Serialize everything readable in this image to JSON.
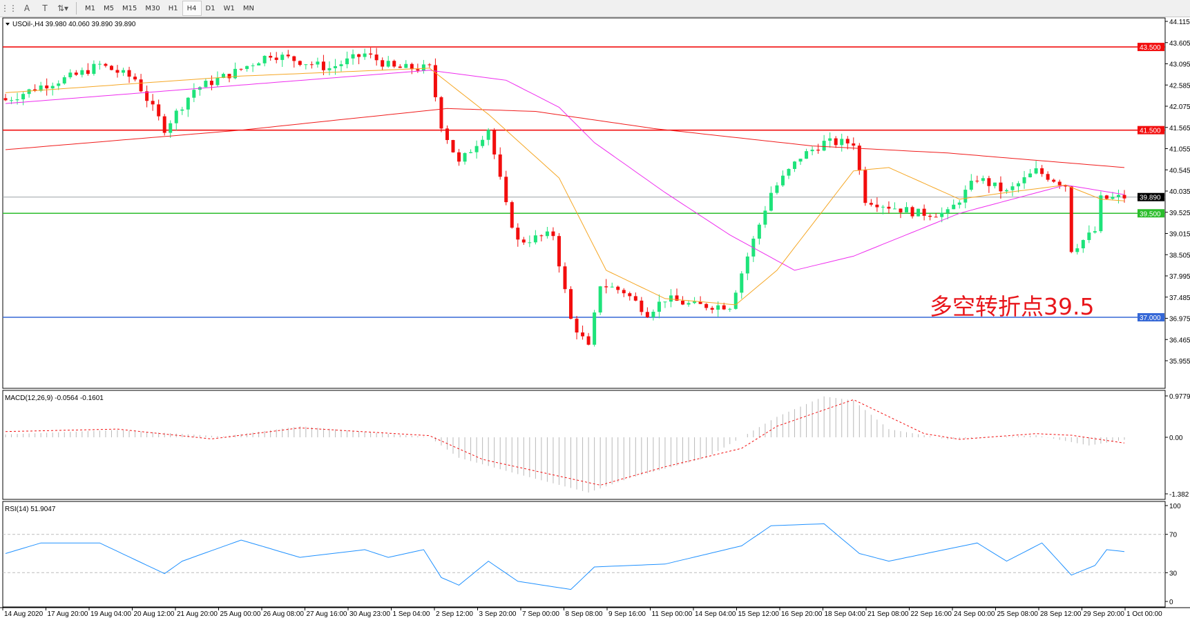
{
  "toolbar": {
    "tools": [
      {
        "name": "grid-options-icon",
        "glyph": "⋮⋮"
      },
      {
        "name": "text-tool-icon",
        "glyph": "A"
      },
      {
        "name": "text-label-tool-icon",
        "glyph": "T"
      },
      {
        "name": "arrows-tool-icon",
        "glyph": "⇅▾"
      }
    ],
    "timeframes": [
      "M1",
      "M5",
      "M15",
      "M30",
      "H1",
      "H4",
      "D1",
      "W1",
      "MN"
    ],
    "active_timeframe": "H4"
  },
  "chart_data": {
    "type": "candlestick",
    "symbol_header": "USOil-,H4  39.980 40.060 39.890 39.890",
    "annotation": "多空转折点39.5",
    "colors": {
      "bull": "#1ee37a",
      "bear": "#f20d0d",
      "ma_fast": "#f5a623",
      "ma_mid": "#ee2bee",
      "ma_slow": "#f01a1a",
      "rsi": "#1e90ff",
      "macd_signal": "#f20d0d",
      "macd_hist": "#b8b8b8"
    },
    "price_axis": {
      "min": 35.955,
      "max": 44.115,
      "ticks": [
        "44.115",
        "43.605",
        "43.095",
        "42.585",
        "42.075",
        "41.565",
        "41.055",
        "40.545",
        "40.035",
        "39.525",
        "39.015",
        "38.505",
        "37.995",
        "37.485",
        "36.975",
        "36.465",
        "35.955"
      ]
    },
    "horizontal_lines": [
      {
        "price": 43.5,
        "label": "43.500",
        "color": "#f20d0d"
      },
      {
        "price": 41.5,
        "label": "41.500",
        "color": "#f20d0d"
      },
      {
        "price": 39.5,
        "label": "39.500",
        "color": "#2bbd2b"
      },
      {
        "price": 37.0,
        "label": "37.000",
        "color": "#3567d6"
      },
      {
        "price": 39.89,
        "label": "39.890",
        "color": "#9aa0a6",
        "current": true
      }
    ],
    "time_labels": [
      "14 Aug 2020",
      "17 Aug 20:00",
      "19 Aug 04:00",
      "20 Aug 12:00",
      "21 Aug 20:00",
      "25 Aug 00:00",
      "26 Aug 08:00",
      "27 Aug 16:00",
      "30 Aug 23:00",
      "1 Sep 04:00",
      "2 Sep 12:00",
      "3 Sep 20:00",
      "7 Sep 00:00",
      "8 Sep 08:00",
      "9 Sep 16:00",
      "11 Sep 00:00",
      "14 Sep 04:00",
      "15 Sep 12:00",
      "16 Sep 20:00",
      "18 Sep 04:00",
      "21 Sep 08:00",
      "22 Sep 16:00",
      "24 Sep 00:00",
      "25 Sep 08:00",
      "28 Sep 12:00",
      "29 Sep 20:00",
      "1 Oct 00:00"
    ],
    "bars_total": 190,
    "close_path": [
      [
        0,
        42.22
      ],
      [
        6,
        42.56
      ],
      [
        12,
        42.82
      ],
      [
        16,
        43.07
      ],
      [
        22,
        42.73
      ],
      [
        27,
        41.54
      ],
      [
        32,
        42.48
      ],
      [
        39,
        42.9
      ],
      [
        45,
        43.33
      ],
      [
        50,
        43.16
      ],
      [
        55,
        42.99
      ],
      [
        61,
        43.33
      ],
      [
        66,
        42.99
      ],
      [
        72,
        42.99
      ],
      [
        74,
        41.63
      ],
      [
        77,
        40.69
      ],
      [
        82,
        41.54
      ],
      [
        85,
        39.67
      ],
      [
        87,
        38.82
      ],
      [
        93,
        38.99
      ],
      [
        96,
        36.94
      ],
      [
        99,
        36.26
      ],
      [
        101,
        37.8
      ],
      [
        105,
        37.62
      ],
      [
        109,
        37.11
      ],
      [
        112,
        37.45
      ],
      [
        117,
        37.28
      ],
      [
        123,
        37.28
      ],
      [
        126,
        38.47
      ],
      [
        130,
        40.0
      ],
      [
        135,
        40.86
      ],
      [
        139,
        41.2
      ],
      [
        144,
        41.2
      ],
      [
        146,
        39.84
      ],
      [
        150,
        39.67
      ],
      [
        155,
        39.5
      ],
      [
        160,
        39.5
      ],
      [
        165,
        40.35
      ],
      [
        170,
        40.0
      ],
      [
        175,
        40.52
      ],
      [
        180,
        40.18
      ],
      [
        181,
        38.64
      ],
      [
        185,
        39.07
      ],
      [
        186,
        39.84
      ],
      [
        190,
        39.89
      ]
    ],
    "ma_slow_path": [
      [
        0,
        41.03
      ],
      [
        40,
        41.5
      ],
      [
        75,
        42.02
      ],
      [
        90,
        41.95
      ],
      [
        110,
        41.54
      ],
      [
        137,
        41.12
      ],
      [
        160,
        40.95
      ],
      [
        190,
        40.6
      ]
    ],
    "ma_mid_path": [
      [
        0,
        42.14
      ],
      [
        37,
        42.55
      ],
      [
        72,
        42.94
      ],
      [
        85,
        42.7
      ],
      [
        94,
        42.05
      ],
      [
        100,
        41.2
      ],
      [
        112,
        40.0
      ],
      [
        123,
        38.98
      ],
      [
        134,
        38.13
      ],
      [
        144,
        38.47
      ],
      [
        162,
        39.5
      ],
      [
        180,
        40.18
      ],
      [
        190,
        39.95
      ]
    ],
    "ma_fast_path": [
      [
        0,
        42.4
      ],
      [
        40,
        42.8
      ],
      [
        72,
        42.99
      ],
      [
        82,
        41.88
      ],
      [
        94,
        40.35
      ],
      [
        102,
        38.13
      ],
      [
        112,
        37.45
      ],
      [
        124,
        37.3
      ],
      [
        131,
        38.13
      ],
      [
        144,
        40.52
      ],
      [
        150,
        40.6
      ],
      [
        162,
        39.84
      ],
      [
        170,
        40.0
      ],
      [
        180,
        40.18
      ],
      [
        186,
        39.84
      ],
      [
        190,
        39.8
      ]
    ],
    "macd": {
      "header": "MACD(12,26,9) -0.0564 -0.1601",
      "range": [
        -1.382,
        0.9779
      ],
      "ticks": [
        "0.9779",
        "0.00",
        "-1.382"
      ],
      "signal_path": [
        [
          0,
          0.14
        ],
        [
          19,
          0.2
        ],
        [
          35,
          -0.04
        ],
        [
          50,
          0.23
        ],
        [
          72,
          0.04
        ],
        [
          81,
          -0.54
        ],
        [
          94,
          -0.95
        ],
        [
          101,
          -1.17
        ],
        [
          112,
          -0.72
        ],
        [
          125,
          -0.27
        ],
        [
          131,
          0.27
        ],
        [
          144,
          0.92
        ],
        [
          156,
          0.09
        ],
        [
          162,
          -0.05
        ],
        [
          175,
          0.09
        ],
        [
          181,
          0.05
        ],
        [
          190,
          -0.14
        ]
      ],
      "hist_path": [
        [
          0,
          0.07
        ],
        [
          19,
          0.18
        ],
        [
          37,
          0.02
        ],
        [
          50,
          0.27
        ],
        [
          72,
          0.0
        ],
        [
          77,
          -0.5
        ],
        [
          87,
          -0.9
        ],
        [
          99,
          -1.35
        ],
        [
          106,
          -1.0
        ],
        [
          119,
          -0.5
        ],
        [
          131,
          0.5
        ],
        [
          139,
          1.0
        ],
        [
          144,
          0.9
        ],
        [
          150,
          0.2
        ],
        [
          160,
          -0.05
        ],
        [
          175,
          0.05
        ],
        [
          184,
          -0.2
        ],
        [
          190,
          -0.06
        ]
      ]
    },
    "rsi": {
      "header": "RSI(14) 51.9047",
      "range": [
        0,
        100
      ],
      "levels": [
        70,
        30
      ],
      "ticks": [
        "100",
        "70",
        "30",
        "0"
      ],
      "path": [
        [
          0,
          50
        ],
        [
          6,
          61
        ],
        [
          16,
          61
        ],
        [
          27,
          29
        ],
        [
          30,
          42
        ],
        [
          40,
          64
        ],
        [
          50,
          46
        ],
        [
          61,
          54
        ],
        [
          65,
          46
        ],
        [
          71,
          54
        ],
        [
          74,
          25
        ],
        [
          77,
          17
        ],
        [
          82,
          42
        ],
        [
          87,
          21
        ],
        [
          96,
          12.5
        ],
        [
          100,
          36
        ],
        [
          112,
          39
        ],
        [
          125,
          58
        ],
        [
          130,
          79
        ],
        [
          139,
          81
        ],
        [
          145,
          50
        ],
        [
          150,
          42
        ],
        [
          165,
          61
        ],
        [
          170,
          42
        ],
        [
          176,
          61
        ],
        [
          181,
          27.5
        ],
        [
          185,
          37.5
        ],
        [
          187,
          54
        ],
        [
          190,
          52
        ]
      ]
    }
  }
}
